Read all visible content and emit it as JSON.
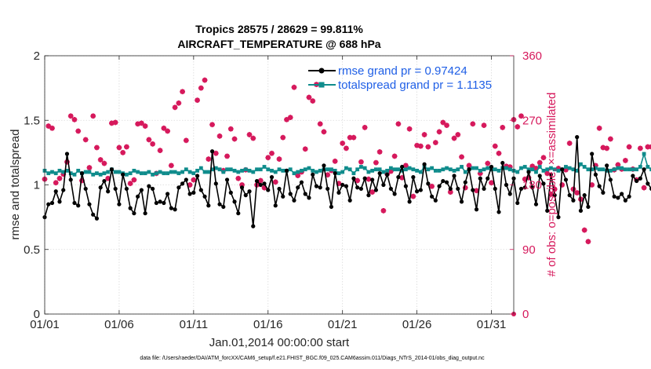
{
  "chart_data": {
    "type": "line",
    "title_line1": "Tropics 28575 / 28629 = 99.811%",
    "title_line2": "AIRCRAFT_TEMPERATURE @ 688 hPa",
    "xlabel": "Jan.01,2014 00:00:00 start",
    "ylabel_left": "rmse and totalspread",
    "ylabel_right": "# of obs: o=possible; ×=assimilated",
    "ylim_left": [
      0,
      2
    ],
    "ylim_right": [
      0,
      360
    ],
    "xlim_days": [
      0,
      31.5
    ],
    "x_ticks": [
      {
        "day": 0,
        "label": "01/01"
      },
      {
        "day": 5,
        "label": "01/06"
      },
      {
        "day": 10,
        "label": "01/11"
      },
      {
        "day": 15,
        "label": "01/16"
      },
      {
        "day": 20,
        "label": "01/21"
      },
      {
        "day": 25,
        "label": "01/26"
      },
      {
        "day": 30,
        "label": "01/31"
      }
    ],
    "y_ticks_left": [
      {
        "value": 0,
        "label": "0"
      },
      {
        "value": 0.5,
        "label": "0.5"
      },
      {
        "value": 1,
        "label": "1"
      },
      {
        "value": 1.5,
        "label": "1.5"
      },
      {
        "value": 2,
        "label": "2"
      }
    ],
    "y_ticks_right": [
      {
        "value": 0,
        "label": "0"
      },
      {
        "value": 90,
        "label": "90"
      },
      {
        "value": 180,
        "label": "180"
      },
      {
        "value": 270,
        "label": "270"
      },
      {
        "value": 360,
        "label": "360"
      }
    ],
    "step_days": 0.25,
    "series": [
      {
        "name": "rmse grand pr = 0.97424",
        "color": "#000000",
        "values": [
          0.75,
          0.85,
          0.86,
          0.95,
          0.87,
          0.96,
          1.24,
          1.04,
          0.86,
          0.84,
          1.09,
          0.97,
          0.85,
          0.77,
          0.74,
          0.98,
          1.03,
          0.95,
          1.12,
          0.97,
          0.85,
          1.08,
          0.97,
          0.82,
          0.78,
          0.91,
          0.96,
          0.78,
          0.99,
          0.97,
          0.86,
          0.87,
          0.86,
          0.93,
          0.82,
          0.81,
          0.98,
          1.01,
          1.04,
          0.93,
          0.94,
          1.07,
          0.96,
          0.91,
          0.84,
          1.26,
          1.01,
          0.85,
          0.83,
          1.04,
          0.94,
          0.87,
          0.78,
          0.98,
          0.92,
          0.95,
          0.68,
          1.03,
          1.0,
          1.01,
          0.96,
          1.06,
          0.84,
          0.97,
          0.91,
          1.11,
          0.93,
          0.88,
          0.98,
          1.02,
          0.93,
          0.9,
          1.08,
          0.99,
          0.98,
          1.15,
          0.97,
          0.83,
          1.09,
          0.94,
          1.0,
          0.99,
          0.88,
          1.05,
          0.98,
          0.97,
          1.05,
          0.92,
          1.04,
          0.96,
          1.09,
          1.0,
          1.08,
          0.97,
          0.93,
          1.06,
          1.14,
          0.99,
          0.87,
          1.06,
          0.95,
          0.96,
          1.16,
          1.01,
          0.91,
          0.88,
          0.99,
          1.03,
          1.02,
          0.97,
          1.07,
          0.97,
          0.87,
          1.02,
          1.12,
          0.96,
          0.81,
          1.05,
          0.97,
          1.05,
          1.14,
          0.97,
          0.79,
          1.17,
          1.0,
          0.93,
          1.05,
          0.86,
          0.97,
          0.98,
          1.1,
          0.98,
          0.85,
          1.07,
          1.01,
          0.8,
          1.08,
          0.92,
          0.75,
          1.12,
          1.04,
          0.92,
          0.88,
          1.37,
          0.8,
          0.92,
          0.83,
          1.24,
          1.08,
          0.99,
          0.94,
          1.15,
          1.04,
          0.91,
          0.9,
          0.93,
          0.88,
          0.91,
          1.07,
          1.03,
          1.05,
          1.12,
          1.01,
          0.97,
          0.89,
          0.99,
          1.04
        ],
        "marker": "circle"
      },
      {
        "name": "totalspread grand pr = 1.1135",
        "color": "#0f8c8c",
        "values": [
          1.11,
          1.09,
          1.1,
          1.09,
          1.11,
          1.1,
          1.11,
          1.09,
          1.08,
          1.11,
          1.09,
          1.1,
          1.1,
          1.08,
          1.09,
          1.08,
          1.09,
          1.1,
          1.12,
          1.1,
          1.1,
          1.09,
          1.08,
          1.09,
          1.11,
          1.1,
          1.09,
          1.09,
          1.1,
          1.08,
          1.09,
          1.1,
          1.09,
          1.09,
          1.1,
          1.1,
          1.09,
          1.1,
          1.12,
          1.1,
          1.09,
          1.11,
          1.13,
          1.1,
          1.1,
          1.12,
          1.13,
          1.12,
          1.1,
          1.12,
          1.12,
          1.11,
          1.1,
          1.11,
          1.12,
          1.11,
          1.1,
          1.12,
          1.12,
          1.14,
          1.12,
          1.11,
          1.1,
          1.12,
          1.11,
          1.11,
          1.12,
          1.09,
          1.1,
          1.11,
          1.12,
          1.13,
          1.11,
          1.1,
          1.11,
          1.12,
          1.12,
          1.12,
          1.11,
          1.09,
          1.1,
          1.13,
          1.12,
          1.09,
          1.12,
          1.14,
          1.13,
          1.1,
          1.11,
          1.12,
          1.12,
          1.1,
          1.11,
          1.13,
          1.12,
          1.12,
          1.11,
          1.12,
          1.13,
          1.12,
          1.11,
          1.1,
          1.14,
          1.12,
          1.13,
          1.11,
          1.11,
          1.12,
          1.13,
          1.12,
          1.11,
          1.12,
          1.14,
          1.1,
          1.12,
          1.13,
          1.13,
          1.11,
          1.12,
          1.13,
          1.12,
          1.12,
          1.11,
          1.13,
          1.13,
          1.12,
          1.11,
          1.1,
          1.13,
          1.14,
          1.12,
          1.12,
          1.1,
          1.14,
          1.11,
          1.12,
          1.13,
          1.12,
          1.11,
          1.12,
          1.14,
          1.13,
          1.12,
          1.11,
          1.16,
          1.14,
          1.12,
          1.12,
          1.13,
          1.12,
          1.12,
          1.11,
          1.11,
          1.12,
          1.13,
          1.13,
          1.12,
          1.12,
          1.12,
          1.12,
          1.14,
          1.24,
          1.14,
          1.12,
          1.11
        ],
        "marker": "square"
      },
      {
        "name": "# of obs possible / assimilated",
        "axis": "right",
        "color": "#d6195c",
        "values": [
          188,
          262,
          259,
          183,
          189,
          195,
          212,
          276,
          271,
          255,
          186,
          243,
          204,
          276,
          232,
          215,
          210,
          189,
          266,
          267,
          232,
          225,
          233,
          182,
          187,
          265,
          266,
          262,
          243,
          237,
          196,
          228,
          259,
          255,
          207,
          288,
          294,
          310,
          242,
          180,
          187,
          298,
          315,
          326,
          216,
          264,
          224,
          248,
          200,
          220,
          258,
          244,
          189,
          180,
          201,
          250,
          245,
          180,
          186,
          176,
          218,
          224,
          184,
          216,
          246,
          271,
          274,
          316,
          193,
          198,
          230,
          302,
          297,
          320,
          265,
          254,
          194,
          200,
          213,
          182,
          238,
          231,
          246,
          246,
          186,
          212,
          260,
          188,
          170,
          211,
          226,
          144,
          195,
          199,
          220,
          265,
          190,
          207,
          258,
          164,
          235,
          234,
          250,
          233,
          178,
          239,
          254,
          267,
          263,
          170,
          245,
          250,
          219,
          176,
          207,
          265,
          172,
          196,
          263,
          210,
          183,
          234,
          224,
          260,
          206,
          205,
          271,
          261,
          276,
          188,
          190,
          206,
          203,
          211,
          218,
          196,
          167,
          174,
          203,
          180,
          201,
          238,
          174,
          169,
          160,
          117,
          101,
          180,
          207,
          259,
          232,
          231,
          244,
          201,
          208,
          202,
          214,
          233,
          202,
          187,
          231,
          176,
          233,
          233,
          226,
          144,
          205,
          252
        ]
      }
    ]
  },
  "footer": "data file: /Users/raeder/DAI/ATM_forcXX/CAM6_setup/f.e21.FHIST_BGC.f09_025.CAM6assim.011/Diags_NTrS_2014-01/obs_diag_output.nc"
}
